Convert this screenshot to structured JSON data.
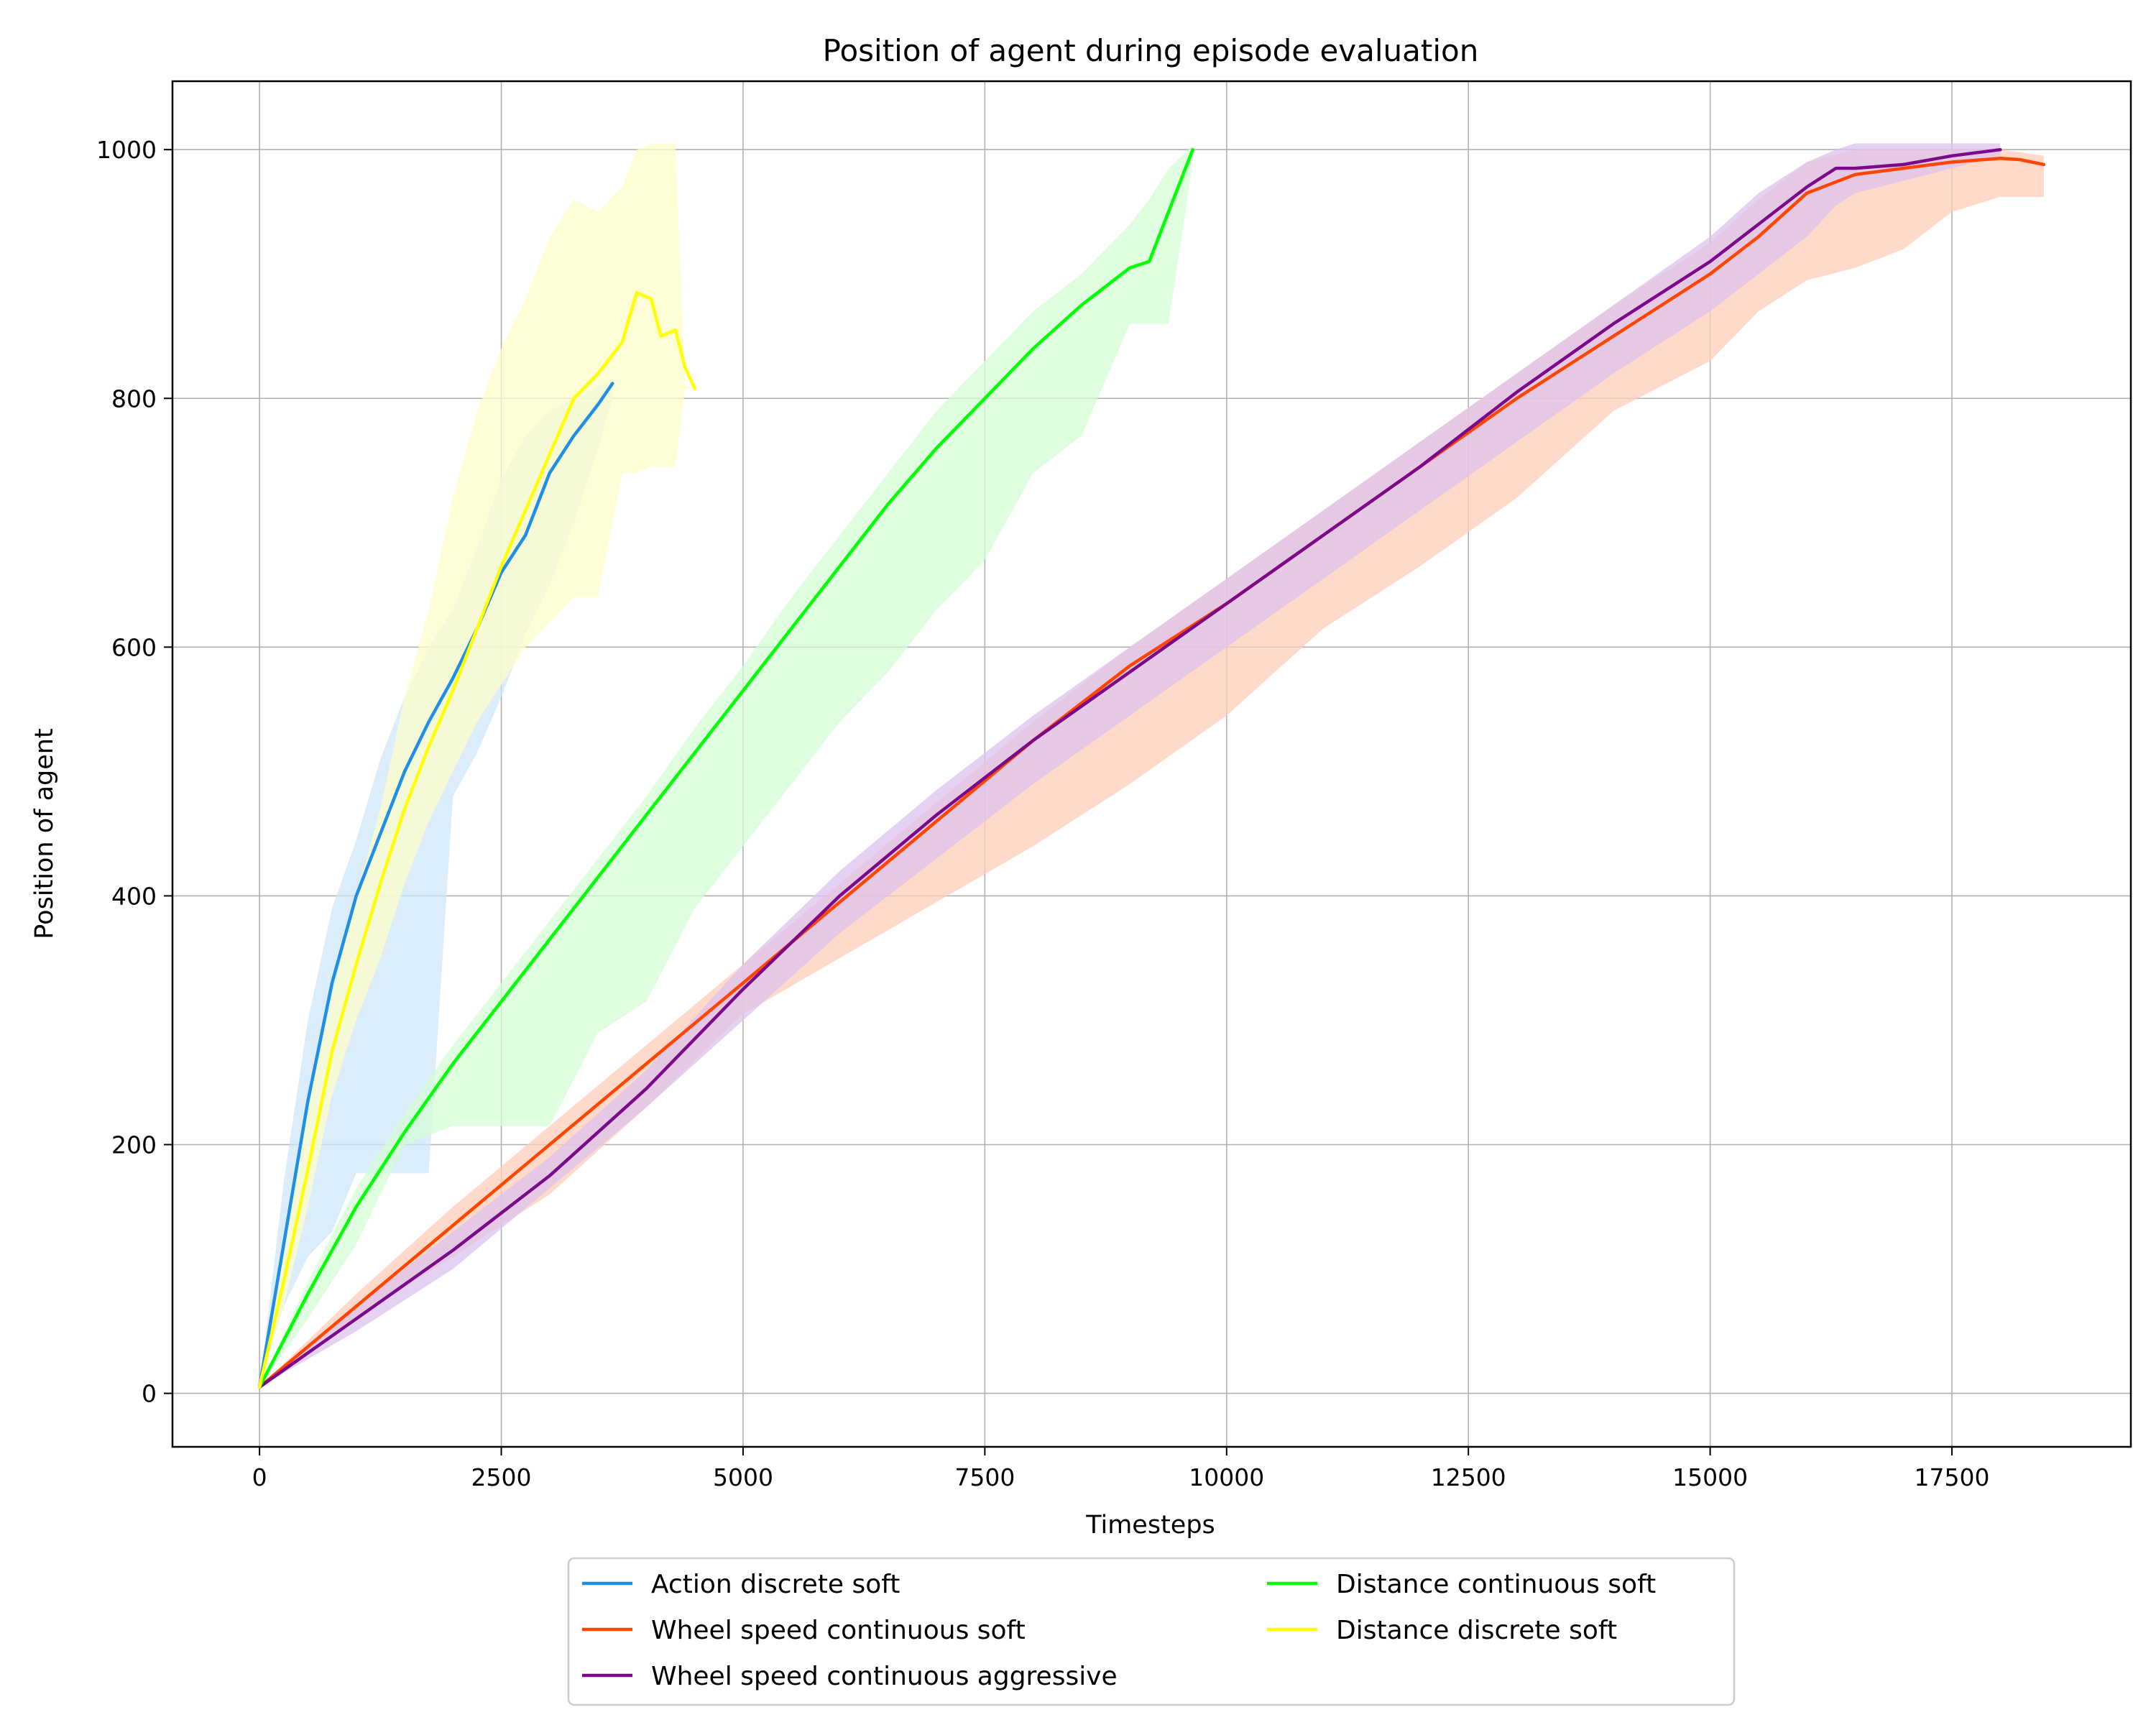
{
  "chart_data": {
    "type": "line",
    "title": "Position of agent during episode evaluation",
    "xlabel": "Timesteps",
    "ylabel": "Position of agent",
    "xlim": [
      -900,
      19350
    ],
    "ylim": [
      -43,
      1055
    ],
    "xticks": [
      0,
      2500,
      5000,
      7500,
      10000,
      12500,
      15000,
      17500
    ],
    "yticks": [
      0,
      200,
      400,
      600,
      800,
      1000
    ],
    "grid": true,
    "legend": {
      "placement": "below-center",
      "columns": 2
    },
    "series": [
      {
        "name": "Action discrete soft",
        "color": "#1f8fe5",
        "band_color": "#cfe5fa",
        "x": [
          0,
          250,
          500,
          750,
          1000,
          1250,
          1500,
          1750,
          2000,
          2250,
          2500,
          2750,
          3000,
          3250,
          3500,
          3650
        ],
        "y": [
          5,
          120,
          235,
          330,
          400,
          450,
          500,
          540,
          575,
          615,
          660,
          690,
          740,
          770,
          795,
          812
        ],
        "lower": [
          5,
          70,
          110,
          130,
          177,
          177,
          177,
          177,
          480,
          515,
          560,
          610,
          650,
          700,
          760,
          800
        ],
        "upper": [
          5,
          170,
          300,
          390,
          445,
          510,
          560,
          600,
          630,
          680,
          735,
          770,
          790,
          800,
          810,
          815
        ]
      },
      {
        "name": "Wheel speed continuous soft",
        "color": "#ff4500",
        "band_color": "#ffcdb8",
        "x": [
          0,
          1000,
          2000,
          3000,
          4000,
          5000,
          6000,
          7000,
          8000,
          9000,
          10000,
          11000,
          12000,
          13000,
          14000,
          15000,
          15500,
          16000,
          16500,
          17000,
          17500,
          18000,
          18200,
          18450
        ],
        "y": [
          5,
          70,
          135,
          200,
          265,
          330,
          395,
          460,
          525,
          585,
          635,
          690,
          745,
          800,
          850,
          900,
          930,
          965,
          980,
          985,
          990,
          993,
          992,
          988
        ],
        "lower": [
          5,
          60,
          110,
          160,
          230,
          305,
          350,
          395,
          440,
          490,
          545,
          615,
          665,
          720,
          790,
          830,
          870,
          895,
          905,
          920,
          950,
          962,
          962,
          962
        ],
        "upper": [
          5,
          80,
          150,
          215,
          280,
          345,
          410,
          475,
          540,
          600,
          655,
          710,
          765,
          820,
          875,
          925,
          960,
          990,
          1000,
          1000,
          1000,
          1000,
          998,
          995
        ]
      },
      {
        "name": "Wheel speed continuous aggressive",
        "color": "#7b0a8a",
        "band_color": "#dcc2ec",
        "x": [
          0,
          1000,
          2000,
          3000,
          4000,
          5000,
          6000,
          7000,
          8000,
          9000,
          10000,
          11000,
          12000,
          13000,
          14000,
          15000,
          15500,
          16000,
          16300,
          16500,
          17000,
          17500,
          18000
        ],
        "y": [
          5,
          60,
          115,
          175,
          245,
          325,
          400,
          465,
          525,
          580,
          635,
          690,
          745,
          805,
          860,
          910,
          940,
          970,
          985,
          985,
          988,
          995,
          1000
        ],
        "lower": [
          5,
          50,
          100,
          165,
          230,
          300,
          370,
          430,
          490,
          545,
          600,
          655,
          710,
          765,
          820,
          870,
          900,
          930,
          955,
          965,
          975,
          985,
          995
        ],
        "upper": [
          5,
          70,
          130,
          190,
          260,
          345,
          420,
          485,
          545,
          600,
          655,
          710,
          765,
          820,
          875,
          930,
          965,
          990,
          1000,
          1005,
          1005,
          1005,
          1005
        ]
      },
      {
        "name": "Distance continuous soft",
        "color": "#00ff00",
        "band_color": "#d4fcd4",
        "x": [
          0,
          500,
          1000,
          1500,
          2000,
          2500,
          3000,
          3500,
          4000,
          4500,
          5000,
          5500,
          6000,
          6500,
          7000,
          7500,
          8000,
          8500,
          9000,
          9200,
          9400,
          9650
        ],
        "y": [
          5,
          80,
          150,
          210,
          265,
          315,
          365,
          415,
          465,
          515,
          565,
          615,
          665,
          715,
          760,
          800,
          840,
          875,
          905,
          910,
          950,
          1000
        ],
        "lower": [
          5,
          60,
          120,
          200,
          215,
          215,
          215,
          290,
          315,
          390,
          440,
          490,
          540,
          580,
          630,
          670,
          740,
          770,
          860,
          860,
          860,
          990
        ],
        "upper": [
          5,
          90,
          165,
          225,
          280,
          330,
          380,
          430,
          480,
          535,
          585,
          640,
          690,
          740,
          790,
          830,
          870,
          900,
          940,
          960,
          985,
          1003
        ]
      },
      {
        "name": "Distance discrete soft",
        "color": "#ffff00",
        "band_color": "#fdfdc8",
        "x": [
          0,
          250,
          500,
          750,
          1000,
          1250,
          1500,
          1750,
          2000,
          2250,
          2500,
          2750,
          3000,
          3250,
          3500,
          3750,
          3900,
          4050,
          4150,
          4300,
          4400,
          4500
        ],
        "y": [
          5,
          90,
          180,
          275,
          345,
          410,
          470,
          520,
          565,
          615,
          665,
          710,
          755,
          800,
          820,
          845,
          885,
          880,
          850,
          855,
          825,
          808
        ],
        "lower": [
          5,
          70,
          150,
          240,
          300,
          350,
          410,
          460,
          500,
          540,
          570,
          600,
          620,
          640,
          640,
          740,
          740,
          745,
          745,
          745,
          808,
          808
        ],
        "upper": [
          5,
          120,
          230,
          320,
          400,
          470,
          560,
          630,
          720,
          790,
          840,
          880,
          930,
          960,
          950,
          970,
          1000,
          1005,
          1005,
          1005,
          810,
          808
        ]
      }
    ]
  }
}
